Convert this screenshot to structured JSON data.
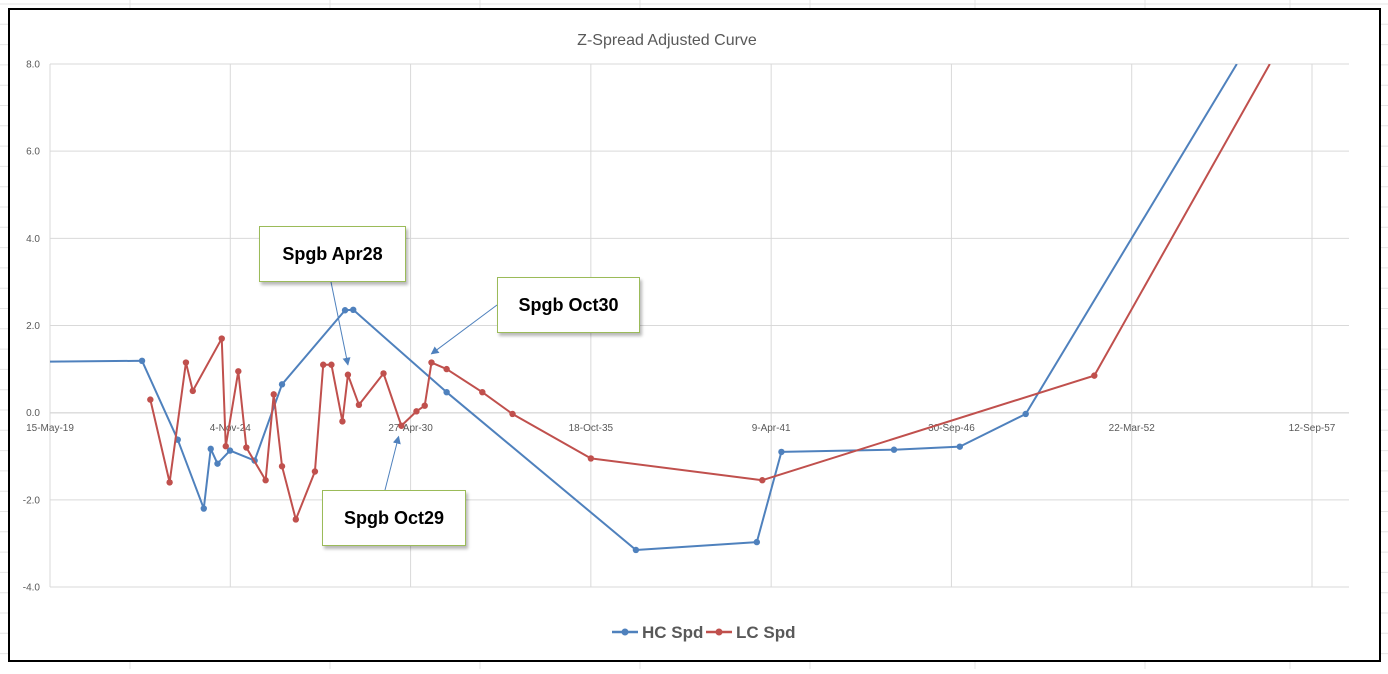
{
  "chart_data": {
    "type": "line",
    "title": "Z-Spread Adjusted Curve",
    "xlabel": "",
    "ylabel": "",
    "x_axis_type": "date",
    "xlim": [
      "2019-05-15",
      "2057-09-12"
    ],
    "ylim": [
      -4.0,
      8.0
    ],
    "x_tick_labels": [
      "15-May-19",
      "4-Nov-24",
      "27-Apr-30",
      "18-Oct-35",
      "9-Apr-41",
      "30-Sep-46",
      "22-Mar-52",
      "12-Sep-57"
    ],
    "x_ticks": [
      "2019-05-15",
      "2024-11-04",
      "2030-04-27",
      "2035-10-18",
      "2041-04-09",
      "2046-09-30",
      "2052-03-22",
      "2057-09-12"
    ],
    "y_ticks": [
      -4.0,
      -2.0,
      0.0,
      2.0,
      4.0,
      6.0,
      8.0
    ],
    "y_tick_labels": [
      "-4.0",
      "-2.0",
      "0.0",
      "2.0",
      "4.0",
      "6.0",
      "8.0"
    ],
    "grid": true,
    "legend_position": "bottom",
    "series": [
      {
        "name": "HC Spd",
        "color": "#4f81bd",
        "points": [
          {
            "x": "2019-05-15",
            "y": 1.17
          },
          {
            "x": "2022-03-01",
            "y": 1.19
          },
          {
            "x": "2023-04-01",
            "y": -0.62
          },
          {
            "x": "2024-01-15",
            "y": -2.2
          },
          {
            "x": "2024-04-01",
            "y": -0.83
          },
          {
            "x": "2024-06-15",
            "y": -1.17
          },
          {
            "x": "2024-11-01",
            "y": -0.87
          },
          {
            "x": "2025-08-01",
            "y": -1.1
          },
          {
            "x": "2026-06-01",
            "y": 0.65
          },
          {
            "x": "2028-04-30",
            "y": 2.35
          },
          {
            "x": "2028-07-30",
            "y": 2.36
          },
          {
            "x": "2031-06-01",
            "y": 0.47
          },
          {
            "x": "2037-03-01",
            "y": -3.15
          },
          {
            "x": "2040-11-01",
            "y": -2.97
          },
          {
            "x": "2041-08-01",
            "y": -0.9
          },
          {
            "x": "2045-01-01",
            "y": -0.85
          },
          {
            "x": "2047-01-01",
            "y": -0.78
          },
          {
            "x": "2049-01-01",
            "y": -0.03
          },
          {
            "x": "2055-06-01",
            "y": 8.0
          }
        ]
      },
      {
        "name": "LC Spd",
        "color": "#c0504d",
        "points": [
          {
            "x": "2022-06-01",
            "y": 0.3
          },
          {
            "x": "2023-01-01",
            "y": -1.6
          },
          {
            "x": "2023-07-01",
            "y": 1.15
          },
          {
            "x": "2023-09-15",
            "y": 0.5
          },
          {
            "x": "2024-08-01",
            "y": 1.7
          },
          {
            "x": "2024-09-15",
            "y": -0.77
          },
          {
            "x": "2025-02-01",
            "y": 0.95
          },
          {
            "x": "2025-05-01",
            "y": -0.8
          },
          {
            "x": "2025-12-01",
            "y": -1.55
          },
          {
            "x": "2026-03-01",
            "y": 0.42
          },
          {
            "x": "2026-06-01",
            "y": -1.23
          },
          {
            "x": "2026-11-01",
            "y": -2.45
          },
          {
            "x": "2027-06-01",
            "y": -1.35
          },
          {
            "x": "2027-09-01",
            "y": 1.1
          },
          {
            "x": "2027-12-01",
            "y": 1.1
          },
          {
            "x": "2028-04-01",
            "y": -0.2
          },
          {
            "x": "2028-06-01",
            "y": 0.87
          },
          {
            "x": "2028-10-01",
            "y": 0.18
          },
          {
            "x": "2029-07-01",
            "y": 0.9
          },
          {
            "x": "2030-01-15",
            "y": -0.3
          },
          {
            "x": "2030-07-01",
            "y": 0.03
          },
          {
            "x": "2030-10-01",
            "y": 0.16
          },
          {
            "x": "2030-12-15",
            "y": 1.15
          },
          {
            "x": "2031-06-01",
            "y": 1.0
          },
          {
            "x": "2032-07-01",
            "y": 0.47
          },
          {
            "x": "2033-06-01",
            "y": -0.03
          },
          {
            "x": "2035-10-18",
            "y": -1.05
          },
          {
            "x": "2041-01-01",
            "y": -1.55
          },
          {
            "x": "2051-02-01",
            "y": 0.85
          },
          {
            "x": "2056-06-01",
            "y": 8.0
          }
        ]
      }
    ],
    "annotations": [
      {
        "text": "Spgb Apr28",
        "points_to": {
          "x": "2028-06-01",
          "y": 1.1
        }
      },
      {
        "text": "Spgb Oct30",
        "points_to": {
          "x": "2030-12-15",
          "y": 1.35
        }
      },
      {
        "text": "Spgb Oct29",
        "points_to": {
          "x": "2029-12-15",
          "y": -0.55
        }
      }
    ]
  }
}
